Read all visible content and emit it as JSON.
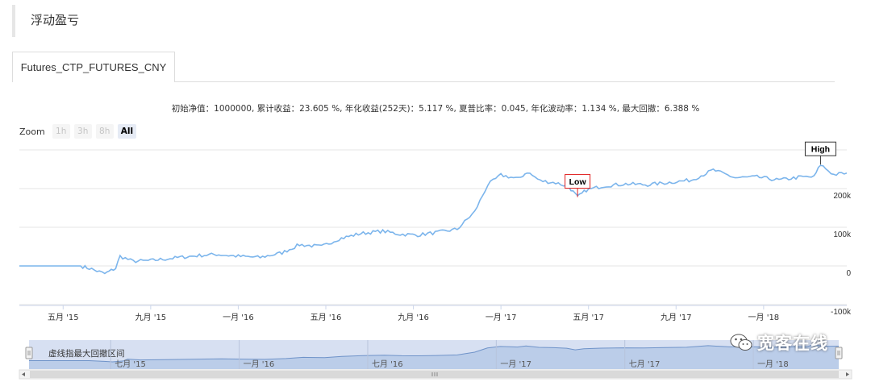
{
  "panel": {
    "title": "浮动盈亏"
  },
  "tabs": [
    {
      "label": "Futures_CTP_FUTURES_CNY",
      "active": true
    }
  ],
  "stats_line": "初始净值：1000000, 累计收益：23.605 %, 年化收益(252天)：5.117 %, 夏普比率：0.045, 年化波动率：1.134 %, 最大回撤：6.388 %",
  "zoom": {
    "label": "Zoom",
    "buttons": [
      {
        "label": "1h",
        "active": false
      },
      {
        "label": "3h",
        "active": false
      },
      {
        "label": "8h",
        "active": false
      },
      {
        "label": "All",
        "active": true
      }
    ]
  },
  "chart_data": {
    "type": "line",
    "x_unit": "months since Mar 2015",
    "ylim": [
      -100000,
      300000
    ],
    "y_ticks": [
      {
        "value": -100000,
        "label": "-100k"
      },
      {
        "value": 0,
        "label": "0"
      },
      {
        "value": 100000,
        "label": "100k"
      },
      {
        "value": 200000,
        "label": "200k"
      }
    ],
    "x_ticks": [
      {
        "x": 2,
        "label": "五月 '15"
      },
      {
        "x": 6,
        "label": "九月 '15"
      },
      {
        "x": 10,
        "label": "一月 '16"
      },
      {
        "x": 14,
        "label": "五月 '16"
      },
      {
        "x": 18,
        "label": "九月 '16"
      },
      {
        "x": 22,
        "label": "一月 '17"
      },
      {
        "x": 26,
        "label": "五月 '17"
      },
      {
        "x": 30,
        "label": "九月 '17"
      },
      {
        "x": 34,
        "label": "一月 '18"
      }
    ],
    "series": [
      {
        "color": "#7cb5ec",
        "points": [
          [
            0,
            0
          ],
          [
            1,
            0
          ],
          [
            2,
            0
          ],
          [
            2.8,
            0
          ],
          [
            3.3,
            -8000
          ],
          [
            3.9,
            -20000
          ],
          [
            4.4,
            -6000
          ],
          [
            4.6,
            25000
          ],
          [
            5.2,
            12000
          ],
          [
            6,
            14000
          ],
          [
            7,
            20000
          ],
          [
            8,
            26000
          ],
          [
            9,
            30000
          ],
          [
            10,
            25000
          ],
          [
            11,
            22000
          ],
          [
            12,
            34000
          ],
          [
            12.8,
            55000
          ],
          [
            13.8,
            50000
          ],
          [
            14.6,
            70000
          ],
          [
            15.6,
            84000
          ],
          [
            16.6,
            90000
          ],
          [
            17.4,
            82000
          ],
          [
            18.2,
            80000
          ],
          [
            19,
            86000
          ],
          [
            20,
            95000
          ],
          [
            20.8,
            140000
          ],
          [
            21.4,
            210000
          ],
          [
            22,
            235000
          ],
          [
            22.8,
            225000
          ],
          [
            23.2,
            243000
          ],
          [
            23.8,
            220000
          ],
          [
            24.5,
            215000
          ],
          [
            25.1,
            205000
          ],
          [
            25.5,
            178000
          ],
          [
            25.9,
            196000
          ],
          [
            26.7,
            207000
          ],
          [
            27.7,
            212000
          ],
          [
            28.7,
            210000
          ],
          [
            29.7,
            216000
          ],
          [
            30.7,
            222000
          ],
          [
            31.7,
            248000
          ],
          [
            32.7,
            228000
          ],
          [
            33.7,
            230000
          ],
          [
            34.7,
            222000
          ],
          [
            35.7,
            230000
          ],
          [
            36.3,
            230000
          ],
          [
            36.6,
            262000
          ],
          [
            37.2,
            236000
          ],
          [
            37.8,
            240000
          ]
        ]
      }
    ],
    "flags": [
      {
        "label": "Low",
        "x": 25.5,
        "y": 178000,
        "color": "#e02020"
      },
      {
        "label": "High",
        "x": 36.6,
        "y": 262000,
        "color": "#333333"
      }
    ],
    "navigator": {
      "label": "虚线指最大回撤区间",
      "x_ticks": [
        {
          "x": 4,
          "label": "七月 '15"
        },
        {
          "x": 10,
          "label": "一月 '16"
        },
        {
          "x": 16,
          "label": "七月 '16"
        },
        {
          "x": 22,
          "label": "一月 '17"
        },
        {
          "x": 28,
          "label": "七月 '17"
        },
        {
          "x": 34,
          "label": "一月 '18"
        }
      ]
    }
  },
  "watermark": {
    "text": "宽客在线"
  },
  "colors": {
    "series": "#7cb5ec",
    "navigator_fill": "#cad5ee",
    "grid": "#e6e6e6",
    "low_flag": "#e02020"
  }
}
